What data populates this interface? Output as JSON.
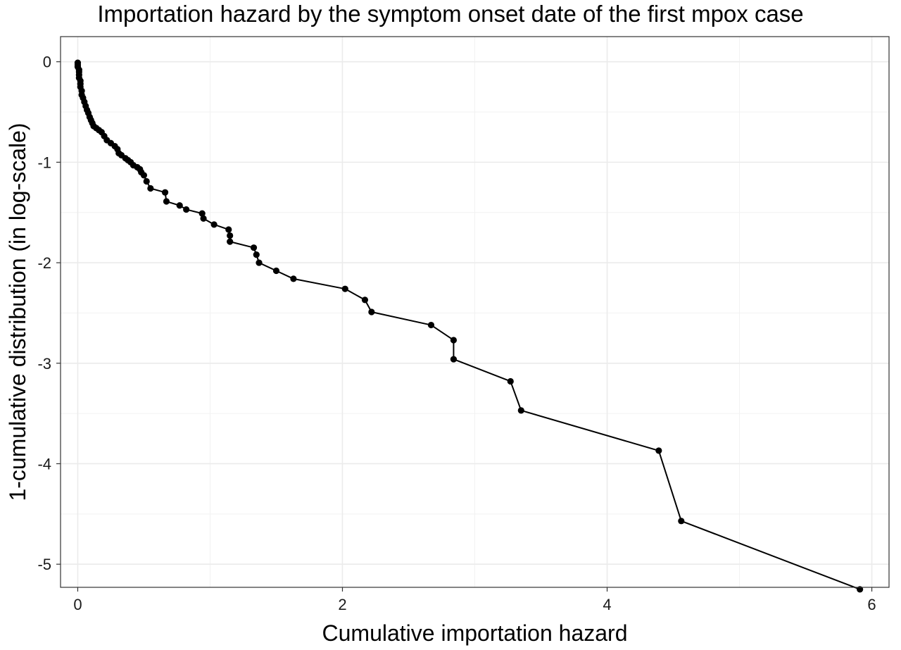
{
  "chart_data": {
    "type": "line",
    "title": "Importation hazard by the symptom onset date of the first mpox case",
    "xlabel": "Cumulative importation hazard",
    "ylabel": "1-cumulative distribution (in log-scale)",
    "xlim": [
      -0.13,
      6.13
    ],
    "ylim": [
      -5.23,
      0.25
    ],
    "x_ticks": [
      0,
      2,
      4,
      6
    ],
    "x_tick_labels": [
      "0",
      "2",
      "4",
      "6"
    ],
    "y_ticks": [
      0,
      -1,
      -2,
      -3,
      -4,
      -5
    ],
    "y_tick_labels": [
      "0",
      "-1",
      "-2",
      "-3",
      "-4",
      "-5"
    ],
    "grid": true,
    "markers": true,
    "series": [
      {
        "x": [
          0.0,
          0.0,
          0.0,
          0.01,
          0.01,
          0.01,
          0.01,
          0.02,
          0.02,
          0.02,
          0.03,
          0.03,
          0.04,
          0.05,
          0.06,
          0.07,
          0.08,
          0.09,
          0.1,
          0.11,
          0.12,
          0.14,
          0.16,
          0.18,
          0.2,
          0.22,
          0.25,
          0.28,
          0.3,
          0.31,
          0.33,
          0.36,
          0.38,
          0.4,
          0.42,
          0.45,
          0.47,
          0.48,
          0.5,
          0.52,
          0.55,
          0.66,
          0.67,
          0.77,
          0.82,
          0.94,
          0.95,
          1.03,
          1.14,
          1.15,
          1.15,
          1.33,
          1.35,
          1.37,
          1.5,
          1.63,
          2.02,
          2.17,
          2.22,
          2.67,
          2.84,
          2.84,
          3.27,
          3.35,
          4.39,
          4.56,
          5.91
        ],
        "y": [
          -0.01,
          -0.03,
          -0.05,
          -0.08,
          -0.1,
          -0.13,
          -0.16,
          -0.19,
          -0.22,
          -0.25,
          -0.29,
          -0.33,
          -0.36,
          -0.4,
          -0.44,
          -0.48,
          -0.51,
          -0.55,
          -0.58,
          -0.61,
          -0.64,
          -0.66,
          -0.68,
          -0.7,
          -0.74,
          -0.78,
          -0.81,
          -0.84,
          -0.87,
          -0.91,
          -0.93,
          -0.96,
          -0.98,
          -1.0,
          -1.03,
          -1.05,
          -1.07,
          -1.1,
          -1.13,
          -1.19,
          -1.26,
          -1.3,
          -1.39,
          -1.43,
          -1.47,
          -1.51,
          -1.56,
          -1.62,
          -1.67,
          -1.73,
          -1.79,
          -1.85,
          -1.92,
          -2.0,
          -2.08,
          -2.16,
          -2.26,
          -2.37,
          -2.49,
          -2.62,
          -2.77,
          -2.96,
          -3.18,
          -3.47,
          -3.87,
          -4.57,
          -5.25
        ]
      }
    ]
  }
}
